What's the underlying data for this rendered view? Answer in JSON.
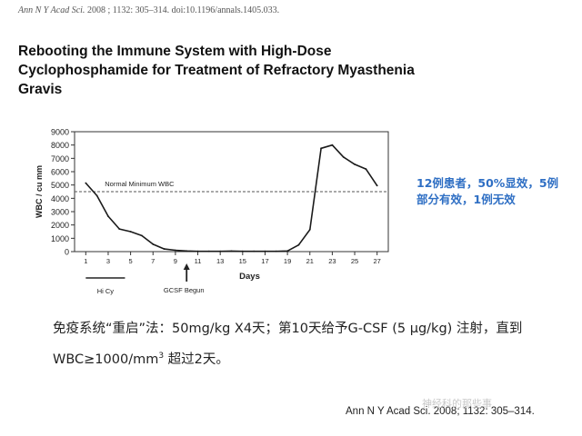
{
  "citation_top": {
    "journal": "Ann N Y Acad Sci.",
    "rest": " 2008 ; 1132: 305–314. doi:10.1196/annals.1405.033."
  },
  "paper_title": "Rebooting the Immune System with High-Dose Cyclophosphamide for Treatment of Refractory Myasthenia Gravis",
  "chart_data": {
    "type": "line",
    "x": [
      1,
      2,
      3,
      4,
      5,
      6,
      7,
      8,
      9,
      10,
      11,
      12,
      13,
      14,
      15,
      16,
      17,
      18,
      19,
      20,
      21,
      22,
      23,
      24,
      25,
      26,
      27
    ],
    "series": [
      {
        "values": [
          5150,
          4200,
          2650,
          1700,
          1500,
          1200,
          550,
          200,
          100,
          50,
          20,
          20,
          20,
          40,
          20,
          20,
          20,
          20,
          50,
          500,
          1650,
          7750,
          8000,
          7100,
          6550,
          6200,
          4950
        ],
        "color": "#1a1a1a"
      }
    ],
    "xlabel": "Days",
    "ylabel": "WBC / cu mm",
    "xlim": [
      0,
      28
    ],
    "ylim": [
      0,
      9000
    ],
    "x_ticks": [
      1,
      3,
      5,
      7,
      9,
      11,
      13,
      15,
      17,
      19,
      21,
      23,
      25,
      27
    ],
    "y_ticks": [
      0,
      1000,
      2000,
      3000,
      4000,
      5000,
      6000,
      7000,
      8000,
      9000
    ],
    "grid": false,
    "reference_line": {
      "label": "Normal Minimum WBC",
      "y": 4500,
      "style": "dashed"
    },
    "annotations": [
      {
        "label": "Hi Cy",
        "from_x": 1,
        "to_x": 4.5,
        "kind": "bar"
      },
      {
        "label": "GCSF Begun",
        "x": 10,
        "kind": "arrow"
      }
    ]
  },
  "side_note": "12例患者，50%显效，5例部分有效，1例无效",
  "method_text": {
    "part1": "免疫系统“重启”法：50mg/kg X4天；第10天给予G-CSF (5 μg/kg) 注射，直到WBC≥1000/mm",
    "sup": "3",
    "part2": " 超过2天。"
  },
  "citation_bottom": "Ann N Y Acad Sci. 2008; 1132: 305–314.",
  "watermark": "神经科的那些事"
}
